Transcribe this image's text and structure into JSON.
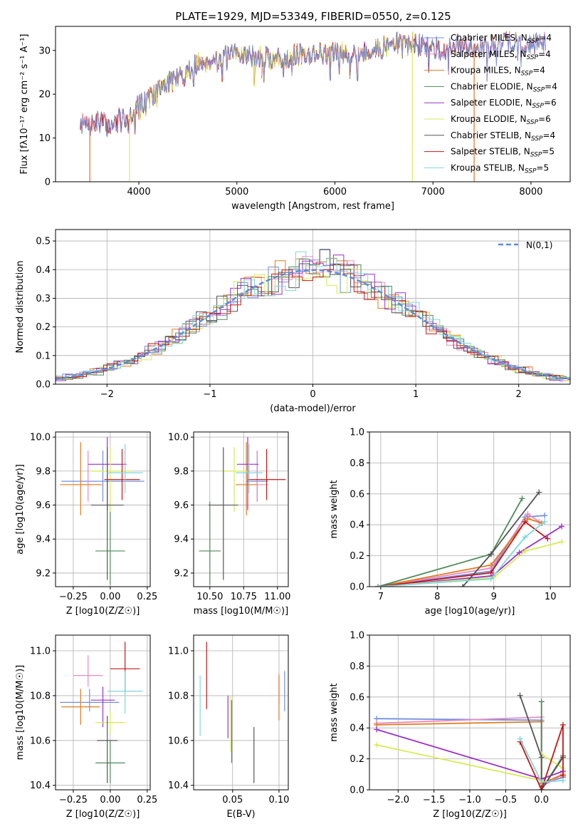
{
  "figure": {
    "title": "PLATE=1929, MJD=53349, FIBERID=0550, z=0.125"
  },
  "models": [
    {
      "name": "Chabrier MILES",
      "nssp": "4",
      "color": "#6f8fe0"
    },
    {
      "name": "Salpeter MILES",
      "nssp": "4",
      "color": "#e78ac3"
    },
    {
      "name": "Kroupa MILES",
      "nssp": "4",
      "color": "#e07b1f"
    },
    {
      "name": "Chabrier ELODIE",
      "nssp": "4",
      "color": "#4e8a57"
    },
    {
      "name": "Salpeter ELODIE",
      "nssp": "6",
      "color": "#9b30c9"
    },
    {
      "name": "Kroupa ELODIE",
      "nssp": "6",
      "color": "#d7ea55"
    },
    {
      "name": "Chabrier STELIB",
      "nssp": "4",
      "color": "#555555"
    },
    {
      "name": "Salpeter STELIB",
      "nssp": "5",
      "color": "#c01818"
    },
    {
      "name": "Kroupa STELIB",
      "nssp": "5",
      "color": "#7fd6dc"
    }
  ],
  "chart_data": [
    {
      "id": "spectrum",
      "type": "line",
      "xlabel": "wavelength [Angstrom, rest frame]",
      "ylabel": "Flux [fλ10⁻¹⁷ erg cm⁻² s⁻¹ A⁻¹]",
      "xlim": [
        3150,
        8400
      ],
      "ylim": [
        0,
        35.5
      ],
      "xticks": [
        4000,
        5000,
        6000,
        7000,
        8000
      ],
      "yticks": [
        0,
        10,
        20,
        30
      ],
      "grid": false,
      "legend": "top-right",
      "legend_labels": [
        "Chabrier MILES, N_SSP=4",
        "Salpeter MILES, N_SSP=4",
        "Kroupa MILES, N_SSP=4",
        "Chabrier ELODIE, N_SSP=4",
        "Salpeter ELODIE, N_SSP=6",
        "Kroupa ELODIE, N_SSP=6",
        "Chabrier STELIB, N_SSP=4",
        "Salpeter STELIB, N_SSP=5",
        "Kroupa STELIB, N_SSP=5"
      ],
      "continuum": {
        "x": [
          3400,
          3500,
          3600,
          3700,
          3800,
          3900,
          4000,
          4100,
          4200,
          4300,
          4400,
          4500,
          4600,
          4700,
          4800,
          4900,
          5000,
          5200,
          5400,
          5600,
          5800,
          6000,
          6200,
          6400,
          6600,
          6800,
          7000,
          7200,
          7400,
          7600,
          7800,
          8000,
          8150
        ],
        "y": [
          13.5,
          12.8,
          14.0,
          12.5,
          14.5,
          15.0,
          17.5,
          19.0,
          21.0,
          23.0,
          23.5,
          25.0,
          27.0,
          27.5,
          28.0,
          28.5,
          29.5,
          28.5,
          28.0,
          28.8,
          29.5,
          29.5,
          29.5,
          30.0,
          31.5,
          31.5,
          30.5,
          30.5,
          31.0,
          30.8,
          32.0,
          31.5,
          32.0
        ]
      },
      "model_ranges": [
        [
          3400,
          8150
        ],
        [
          3400,
          8150
        ],
        [
          3400,
          8150
        ],
        [
          3400,
          8150
        ],
        [
          3400,
          8150
        ],
        [
          3900,
          6800
        ],
        [
          3400,
          8150
        ],
        [
          3400,
          7400
        ],
        [
          3400,
          8150
        ]
      ],
      "dropouts": [
        {
          "model": 1,
          "x": 3500,
          "to": "left"
        },
        {
          "model": 2,
          "x": 3500,
          "to": "left"
        },
        {
          "model": 5,
          "x": 3905,
          "to": "left"
        },
        {
          "model": 5,
          "x": 6790,
          "to": "right"
        },
        {
          "model": 7,
          "x": 7420,
          "to": "right"
        },
        {
          "model": 2,
          "x": 7420,
          "to": "right"
        }
      ]
    },
    {
      "id": "residuals",
      "type": "histogram",
      "xlabel": "(data-model)/error",
      "ylabel": "Normed distribution",
      "xlim": [
        -2.5,
        2.5
      ],
      "ylim": [
        0,
        0.54
      ],
      "xticks": [
        -2,
        -1,
        0,
        1,
        2
      ],
      "yticks": [
        0.0,
        0.1,
        0.2,
        0.3,
        0.4,
        0.5
      ],
      "grid": true,
      "legend": "top-right",
      "reference_label": "N(0,1)",
      "bin_width": 0.1
    },
    {
      "id": "age-vs-Z",
      "type": "errorbar",
      "xlabel": "Z [log10(Z/Z☉)]",
      "ylabel": "age [log10(age/yr)]",
      "xlim": [
        -0.37,
        0.27
      ],
      "ylim": [
        9.12,
        10.03
      ],
      "xticks": [
        -0.25,
        0.0,
        0.25
      ],
      "yticks": [
        9.2,
        9.4,
        9.6,
        9.8,
        10.0
      ],
      "grid": true,
      "points": [
        {
          "model": 0,
          "x": -0.05,
          "xerr": 0.28,
          "y": 9.74,
          "yerr": [
            0.12,
            0.18
          ]
        },
        {
          "model": 1,
          "x": -0.15,
          "xerr": 0.1,
          "y": 9.72,
          "yerr": [
            0.1,
            0.2
          ]
        },
        {
          "model": 2,
          "x": -0.2,
          "xerr": 0.14,
          "y": 9.72,
          "yerr": [
            0.18,
            0.25
          ]
        },
        {
          "model": 3,
          "x": 0.0,
          "xerr": 0.1,
          "y": 9.33,
          "yerr": [
            0.2,
            0.29
          ]
        },
        {
          "model": 4,
          "x": -0.02,
          "xerr": 0.13,
          "y": 9.84,
          "yerr": [
            0.27,
            0.16
          ]
        },
        {
          "model": 5,
          "x": 0.0,
          "xerr": 0.14,
          "y": 9.8,
          "yerr": [
            0.24,
            0.14
          ]
        },
        {
          "model": 6,
          "x": -0.02,
          "xerr": 0.11,
          "y": 9.6,
          "yerr": [
            0.44,
            0.34
          ]
        },
        {
          "model": 7,
          "x": 0.08,
          "xerr": 0.12,
          "y": 9.75,
          "yerr": [
            0.12,
            0.18
          ]
        },
        {
          "model": 8,
          "x": 0.1,
          "xerr": 0.12,
          "y": 9.79,
          "yerr": [
            0.12,
            0.17
          ]
        }
      ]
    },
    {
      "id": "age-vs-mass",
      "type": "errorbar",
      "xlabel": "mass [log10(M/M☉)]",
      "ylabel": "",
      "xlim": [
        10.38,
        11.08
      ],
      "ylim": [
        9.12,
        10.03
      ],
      "xticks": [
        10.5,
        10.75,
        11.0
      ],
      "yticks": [
        9.2,
        9.4,
        9.6,
        9.8,
        10.0
      ],
      "grid": true,
      "points": [
        {
          "model": 0,
          "x": 10.85,
          "xerr": 0.08,
          "y": 9.74,
          "yerr": [
            0.12,
            0.18
          ]
        },
        {
          "model": 1,
          "x": 10.85,
          "xerr": 0.08,
          "y": 9.72,
          "yerr": [
            0.1,
            0.2
          ]
        },
        {
          "model": 2,
          "x": 10.77,
          "xerr": 0.08,
          "y": 9.72,
          "yerr": [
            0.18,
            0.25
          ]
        },
        {
          "model": 3,
          "x": 10.5,
          "xerr": 0.08,
          "y": 9.33,
          "yerr": [
            0.2,
            0.29
          ]
        },
        {
          "model": 4,
          "x": 10.78,
          "xerr": 0.08,
          "y": 9.84,
          "yerr": [
            0.27,
            0.16
          ]
        },
        {
          "model": 5,
          "x": 10.68,
          "xerr": 0.1,
          "y": 9.8,
          "yerr": [
            0.24,
            0.14
          ]
        },
        {
          "model": 6,
          "x": 10.6,
          "xerr": 0.11,
          "y": 9.6,
          "yerr": [
            0.44,
            0.34
          ]
        },
        {
          "model": 7,
          "x": 10.92,
          "xerr": 0.14,
          "y": 9.75,
          "yerr": [
            0.12,
            0.18
          ]
        },
        {
          "model": 8,
          "x": 10.79,
          "xerr": 0.1,
          "y": 9.79,
          "yerr": [
            0.12,
            0.17
          ]
        }
      ]
    },
    {
      "id": "weight-vs-age",
      "type": "line",
      "xlabel": "age [log10(age/yr)]",
      "ylabel": "mass weight",
      "xlim": [
        6.8,
        10.35
      ],
      "ylim": [
        0,
        1.0
      ],
      "xticks": [
        7,
        8,
        9,
        10
      ],
      "yticks": [
        0.0,
        0.2,
        0.4,
        0.6,
        0.8,
        1.0
      ],
      "grid": true,
      "series": [
        {
          "model": 0,
          "x": [
            6.95,
            8.95,
            9.55,
            9.9
          ],
          "y": [
            0.0,
            0.1,
            0.45,
            0.46
          ]
        },
        {
          "model": 1,
          "x": [
            6.95,
            8.95,
            9.6,
            9.8
          ],
          "y": [
            0.0,
            0.12,
            0.47,
            0.42
          ]
        },
        {
          "model": 2,
          "x": [
            6.95,
            8.95,
            9.6,
            9.85
          ],
          "y": [
            0.0,
            0.14,
            0.44,
            0.41
          ]
        },
        {
          "model": 3,
          "x": [
            6.95,
            8.95,
            9.5
          ],
          "y": [
            0.0,
            0.21,
            0.57
          ]
        },
        {
          "model": 4,
          "x": [
            6.95,
            8.98,
            9.45,
            10.2
          ],
          "y": [
            0.0,
            0.07,
            0.22,
            0.39
          ]
        },
        {
          "model": 5,
          "x": [
            6.95,
            9.0,
            9.55,
            10.2
          ],
          "y": [
            0.0,
            0.06,
            0.23,
            0.29
          ]
        },
        {
          "model": 6,
          "x": [
            8.45,
            8.95,
            9.8
          ],
          "y": [
            0.0,
            0.21,
            0.61
          ]
        },
        {
          "model": 7,
          "x": [
            6.95,
            8.95,
            9.55,
            9.95
          ],
          "y": [
            0.0,
            0.09,
            0.42,
            0.31
          ]
        },
        {
          "model": 8,
          "x": [
            6.95,
            8.95,
            9.55,
            9.9
          ],
          "y": [
            0.0,
            0.05,
            0.32,
            0.42
          ]
        }
      ]
    },
    {
      "id": "mass-vs-Z",
      "type": "errorbar",
      "xlabel": "Z [log10(Z/Z☉)]",
      "ylabel": "mass [log10(M/M☉)]",
      "xlim": [
        -0.37,
        0.27
      ],
      "ylim": [
        10.38,
        11.07
      ],
      "xticks": [
        -0.25,
        0.0,
        0.25
      ],
      "yticks": [
        10.4,
        10.6,
        10.8,
        11.0
      ],
      "grid": true,
      "points": [
        {
          "model": 0,
          "x": -0.14,
          "xerr": 0.2,
          "y": 10.77,
          "yerr": [
            0.04,
            0.06
          ]
        },
        {
          "model": 1,
          "x": -0.15,
          "xerr": 0.1,
          "y": 10.89,
          "yerr": [
            0.05,
            0.09
          ]
        },
        {
          "model": 2,
          "x": -0.2,
          "xerr": 0.13,
          "y": 10.75,
          "yerr": [
            0.08,
            0.08
          ]
        },
        {
          "model": 3,
          "x": 0.0,
          "xerr": 0.1,
          "y": 10.5,
          "yerr": [
            0.09,
            0.1
          ]
        },
        {
          "model": 4,
          "x": -0.05,
          "xerr": 0.08,
          "y": 10.78,
          "yerr": [
            0.12,
            0.06
          ]
        },
        {
          "model": 5,
          "x": 0.0,
          "xerr": 0.1,
          "y": 10.68,
          "yerr": [
            0.05,
            0.05
          ]
        },
        {
          "model": 6,
          "x": -0.02,
          "xerr": 0.07,
          "y": 10.6,
          "yerr": [
            0.19,
            0.11
          ]
        },
        {
          "model": 7,
          "x": 0.1,
          "xerr": 0.1,
          "y": 10.92,
          "yerr": [
            0.1,
            0.12
          ]
        },
        {
          "model": 8,
          "x": 0.1,
          "xerr": 0.12,
          "y": 10.82,
          "yerr": [
            0.1,
            0.09
          ]
        }
      ]
    },
    {
      "id": "mass-vs-ebv",
      "type": "errorbar",
      "xlabel": "E(B-V)",
      "ylabel": "",
      "xlim": [
        0.008,
        0.11
      ],
      "ylim": [
        10.38,
        11.07
      ],
      "xticks": [
        0.05,
        0.1
      ],
      "yticks": [
        10.4,
        10.6,
        10.8,
        11.0
      ],
      "grid": true,
      "points": [
        {
          "model": 0,
          "x": 0.106,
          "xerr": 0.0,
          "y": 10.82,
          "yerr": [
            0.09,
            0.09
          ]
        },
        {
          "model": 1,
          "x": 0.1,
          "xerr": 0.0,
          "y": 10.82,
          "yerr": [
            0.06,
            0.08
          ]
        },
        {
          "model": 2,
          "x": 0.1,
          "xerr": 0.0,
          "y": 10.79,
          "yerr": [
            0.1,
            0.1
          ]
        },
        {
          "model": 3,
          "x": 0.049,
          "xerr": 0.0,
          "y": 10.65,
          "yerr": [
            0.15,
            0.13
          ]
        },
        {
          "model": 4,
          "x": 0.045,
          "xerr": 0.0,
          "y": 10.7,
          "yerr": [
            0.09,
            0.1
          ]
        },
        {
          "model": 5,
          "x": 0.048,
          "xerr": 0.0,
          "y": 10.67,
          "yerr": [
            0.12,
            0.13
          ]
        },
        {
          "model": 6,
          "x": 0.073,
          "xerr": 0.0,
          "y": 10.56,
          "yerr": [
            0.15,
            0.1
          ]
        },
        {
          "model": 7,
          "x": 0.022,
          "xerr": 0.0,
          "y": 10.9,
          "yerr": [
            0.16,
            0.14
          ]
        },
        {
          "model": 8,
          "x": 0.015,
          "xerr": 0.0,
          "y": 10.75,
          "yerr": [
            0.13,
            0.14
          ]
        }
      ]
    },
    {
      "id": "weight-vs-Z",
      "type": "line",
      "xlabel": "Z [log10(Z/Z☉)]",
      "ylabel": "mass weight",
      "xlim": [
        -2.4,
        0.4
      ],
      "ylim": [
        0,
        1.0
      ],
      "xticks": [
        -2.0,
        -1.5,
        -1.0,
        -0.5,
        0.0
      ],
      "yticks": [
        0.0,
        0.2,
        0.4,
        0.6,
        0.8,
        1.0
      ],
      "grid": true,
      "series": [
        {
          "model": 0,
          "x": [
            -2.3,
            0.0,
            0.0,
            0.3
          ],
          "y": [
            0.46,
            0.45,
            0.04,
            0.08
          ]
        },
        {
          "model": 1,
          "x": [
            -2.3,
            0.0,
            0.0,
            0.3
          ],
          "y": [
            0.43,
            0.47,
            0.02,
            0.1
          ]
        },
        {
          "model": 2,
          "x": [
            -2.3,
            0.0,
            0.0,
            0.3
          ],
          "y": [
            0.42,
            0.44,
            0.04,
            0.1
          ]
        },
        {
          "model": 3,
          "x": [
            0.0,
            0.0,
            0.3
          ],
          "y": [
            0.57,
            0.0,
            0.22
          ]
        },
        {
          "model": 4,
          "x": [
            -2.3,
            0.0,
            0.3
          ],
          "y": [
            0.39,
            0.07,
            0.12
          ]
        },
        {
          "model": 5,
          "x": [
            -2.3,
            0.0,
            0.0,
            0.3
          ],
          "y": [
            0.29,
            0.06,
            0.23,
            0.14
          ]
        },
        {
          "model": 6,
          "x": [
            -0.3,
            0.0,
            0.0,
            0.3
          ],
          "y": [
            0.61,
            0.21,
            0.0,
            0.21
          ]
        },
        {
          "model": 7,
          "x": [
            -0.3,
            0.0,
            0.3,
            0.3
          ],
          "y": [
            0.31,
            0.0,
            0.42,
            0.09
          ]
        },
        {
          "model": 8,
          "x": [
            -0.3,
            0.0,
            0.3
          ],
          "y": [
            0.33,
            0.05,
            0.06
          ]
        }
      ]
    }
  ]
}
